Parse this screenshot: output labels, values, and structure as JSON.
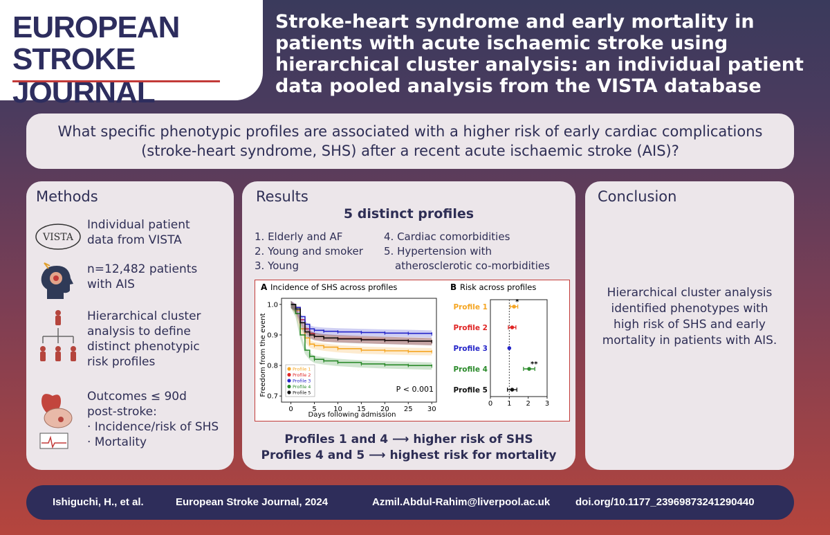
{
  "logo": {
    "line1": "EUROPEAN",
    "line2": "STROKE JOURNAL"
  },
  "title": "Stroke-heart syndrome and early mortality in patients with acute ischaemic stroke using hierarchical cluster analysis: an individual patient data pooled analysis from the VISTA database",
  "question": {
    "line1": "What specific phenotypic profiles are associated with a higher risk of early cardiac complications",
    "line2": "(stroke-heart syndrome, SHS) after a recent acute ischaemic stroke (AIS)?"
  },
  "methods": {
    "title": "Methods",
    "vista_logo": "VISTA",
    "items": [
      {
        "icon": "vista-logo-icon",
        "lines": [
          "Individual patient",
          "data from VISTA"
        ]
      },
      {
        "icon": "stroke-head-icon",
        "lines": [
          "n=12,482 patients",
          "with AIS"
        ]
      },
      {
        "icon": "cluster-tree-icon",
        "lines": [
          "Hierarchical cluster",
          "analysis to define",
          "distinct phenotypic",
          "risk profiles"
        ]
      },
      {
        "icon": "heart-brain-ecg-icon",
        "lines": [
          "Outcomes ≤ 90d",
          "post-stroke:",
          "· Incidence/risk of SHS",
          "· Mortality"
        ]
      }
    ]
  },
  "results": {
    "title": "Results",
    "subtitle": "5 distinct profiles",
    "profiles_left": [
      "1. Elderly and AF",
      "2. Young and smoker",
      "3. Young"
    ],
    "profiles_right": [
      "4. Cardiac comorbidities",
      "5. Hypertension with",
      "atherosclerotic co-morbidities"
    ],
    "bottom1": "Profiles 1 and 4 ⟶ higher risk of SHS",
    "bottom2": "Profiles 4 and 5 ⟶ highest risk for mortality"
  },
  "conclusion": {
    "title": "Conclusion",
    "lines": [
      "Hierarchical cluster analysis",
      "identified phenotypes with",
      "high risk of SHS and early",
      "mortality in patients with AIS."
    ]
  },
  "footer": {
    "author": "Ishiguchi, H., et al.",
    "journal": "European Stroke Journal, 2024",
    "email": "Azmil.Abdul-Rahim@liverpool.ac.uk",
    "doi": "doi.org/10.1177_23969873241290440"
  },
  "colors": {
    "profile1": "#f5a623",
    "profile2": "#e02424",
    "profile3": "#2424c8",
    "profile4": "#2a8a2a",
    "profile5": "#111111",
    "accent": "#c23a38",
    "navy": "#2e2d5a"
  },
  "chart_data": [
    {
      "type": "line",
      "panel_label": "A",
      "title": "Incidence of SHS across profiles",
      "xlabel": "Days following admission",
      "ylabel": "Freedom from the event",
      "xlim": [
        -2,
        31
      ],
      "ylim": [
        0.68,
        1.02
      ],
      "xticks": [
        0,
        5,
        10,
        15,
        20,
        25,
        30
      ],
      "yticks": [
        0.7,
        0.8,
        0.9,
        1.0
      ],
      "annotation": "P < 0.001",
      "series": [
        {
          "name": "Profile 1",
          "x": [
            0,
            1,
            2,
            3,
            4,
            5,
            7,
            10,
            15,
            20,
            25,
            30
          ],
          "values": [
            1.0,
            0.98,
            0.92,
            0.89,
            0.87,
            0.865,
            0.86,
            0.855,
            0.85,
            0.848,
            0.846,
            0.845
          ]
        },
        {
          "name": "Profile 2",
          "x": [
            0,
            1,
            2,
            3,
            4,
            5,
            7,
            10,
            15,
            20,
            25,
            30
          ],
          "values": [
            1.0,
            0.99,
            0.95,
            0.92,
            0.905,
            0.895,
            0.89,
            0.888,
            0.885,
            0.882,
            0.88,
            0.878
          ]
        },
        {
          "name": "Profile 3",
          "x": [
            0,
            1,
            2,
            3,
            4,
            5,
            7,
            10,
            15,
            20,
            25,
            30
          ],
          "values": [
            1.0,
            0.99,
            0.96,
            0.935,
            0.92,
            0.915,
            0.912,
            0.91,
            0.908,
            0.906,
            0.905,
            0.903
          ]
        },
        {
          "name": "Profile 4",
          "x": [
            0,
            1,
            2,
            3,
            4,
            5,
            7,
            10,
            15,
            20,
            25,
            30
          ],
          "values": [
            1.0,
            0.97,
            0.9,
            0.85,
            0.83,
            0.82,
            0.815,
            0.81,
            0.805,
            0.802,
            0.8,
            0.798
          ]
        },
        {
          "name": "Profile 5",
          "x": [
            0,
            1,
            2,
            3,
            4,
            5,
            7,
            10,
            15,
            20,
            25,
            30
          ],
          "values": [
            1.0,
            0.985,
            0.94,
            0.91,
            0.9,
            0.895,
            0.89,
            0.887,
            0.884,
            0.882,
            0.88,
            0.878
          ]
        }
      ]
    },
    {
      "type": "scatter",
      "panel_label": "B",
      "title": "Risk across profiles",
      "xlim": [
        0,
        3
      ],
      "xticks": [
        0,
        1,
        2,
        3
      ],
      "reference_line": 1,
      "categories": [
        "Profile 1",
        "Profile 2",
        "Profile 3",
        "Profile 4",
        "Profile 5"
      ],
      "values": [
        1.25,
        1.15,
        1.0,
        2.05,
        1.15
      ],
      "ci_low": [
        1.05,
        0.95,
        1.0,
        1.75,
        0.9
      ],
      "ci_high": [
        1.45,
        1.35,
        1.0,
        2.35,
        1.4
      ],
      "significance": [
        "*",
        "",
        "",
        "**",
        ""
      ]
    }
  ]
}
